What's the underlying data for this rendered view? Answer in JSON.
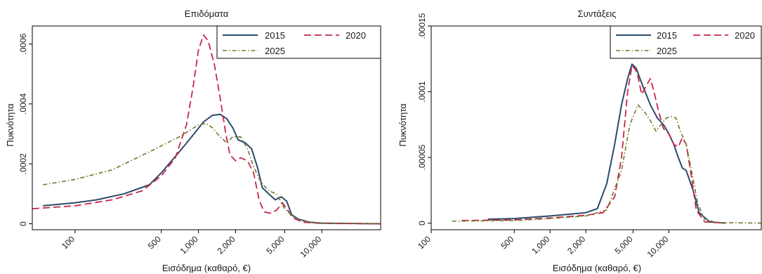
{
  "colors": {
    "c2015": "#2b4a6b",
    "c2020": "#c8254a",
    "c2025": "#6b7a2c",
    "frame": "#000000",
    "gridline": "#000000",
    "background": "#ffffff"
  },
  "chart_data": [
    {
      "type": "line",
      "title": "Επιδόματα",
      "xlabel": "Εισόδημα (καθαρό, €)",
      "ylabel": "Πυκνότητα",
      "x_scale": "log",
      "xlim": [
        45,
        30000
      ],
      "ylim": [
        -2e-05,
        0.00066
      ],
      "x_ticks": [
        100,
        500,
        1000,
        2000,
        5000,
        10000
      ],
      "x_tick_labels": [
        "100",
        "500",
        "1,000",
        "2,000",
        "5,000",
        "10,000"
      ],
      "y_ticks": [
        0,
        0.0002,
        0.0004,
        0.0006
      ],
      "y_tick_labels": [
        "0",
        ".0002",
        ".0004",
        ".0006"
      ],
      "grid": false,
      "legend_position": "top-right",
      "legend": [
        "2015",
        "2020",
        "2025"
      ],
      "series": [
        {
          "name": "2015",
          "color_key": "c2015",
          "dash": "solid",
          "points": [
            [
              55,
              6e-05
            ],
            [
              100,
              7e-05
            ],
            [
              150,
              8e-05
            ],
            [
              250,
              0.0001
            ],
            [
              400,
              0.00013
            ],
            [
              500,
              0.00017
            ],
            [
              700,
              0.00024
            ],
            [
              900,
              0.000295
            ],
            [
              1100,
              0.00034
            ],
            [
              1300,
              0.000362
            ],
            [
              1500,
              0.000365
            ],
            [
              1700,
              0.00035
            ],
            [
              1900,
              0.00032
            ],
            [
              2100,
              0.00028
            ],
            [
              2400,
              0.00027
            ],
            [
              2700,
              0.00025
            ],
            [
              3000,
              0.00019
            ],
            [
              3300,
              0.00012
            ],
            [
              3700,
              0.0001
            ],
            [
              4200,
              8e-05
            ],
            [
              4700,
              9e-05
            ],
            [
              5200,
              7.5e-05
            ],
            [
              5700,
              3e-05
            ],
            [
              6500,
              1.5e-05
            ],
            [
              8000,
              5e-06
            ],
            [
              10000,
              2e-06
            ],
            [
              30000,
              0
            ]
          ]
        },
        {
          "name": "2020",
          "color_key": "c2020",
          "dash": "long-dash",
          "points": [
            [
              45,
              5e-05
            ],
            [
              100,
              6e-05
            ],
            [
              200,
              8e-05
            ],
            [
              350,
              0.00011
            ],
            [
              500,
              0.00016
            ],
            [
              650,
              0.00022
            ],
            [
              800,
              0.00033
            ],
            [
              900,
              0.00045
            ],
            [
              1000,
              0.00058
            ],
            [
              1100,
              0.00063
            ],
            [
              1200,
              0.00061
            ],
            [
              1350,
              0.00053
            ],
            [
              1500,
              0.00042
            ],
            [
              1650,
              0.00031
            ],
            [
              1800,
              0.00023
            ],
            [
              2000,
              0.00021
            ],
            [
              2200,
              0.00022
            ],
            [
              2500,
              0.00021
            ],
            [
              2800,
              0.00017
            ],
            [
              3100,
              8e-05
            ],
            [
              3400,
              4e-05
            ],
            [
              3800,
              3.5e-05
            ],
            [
              4300,
              4.5e-05
            ],
            [
              4800,
              7e-05
            ],
            [
              5200,
              5e-05
            ],
            [
              5800,
              2e-05
            ],
            [
              7000,
              5e-06
            ],
            [
              10000,
              1e-06
            ],
            [
              30000,
              0
            ]
          ]
        },
        {
          "name": "2025",
          "color_key": "c2025",
          "dash": "dash-dot",
          "points": [
            [
              55,
              0.00013
            ],
            [
              100,
              0.000148
            ],
            [
              200,
              0.00018
            ],
            [
              400,
              0.00024
            ],
            [
              700,
              0.00029
            ],
            [
              1000,
              0.00033
            ],
            [
              1150,
              0.000335
            ],
            [
              1300,
              0.00032
            ],
            [
              1500,
              0.00029
            ],
            [
              1700,
              0.00027
            ],
            [
              1900,
              0.00029
            ],
            [
              2200,
              0.00029
            ],
            [
              2500,
              0.00025
            ],
            [
              2800,
              0.00019
            ],
            [
              3200,
              0.00014
            ],
            [
              3700,
              0.00011
            ],
            [
              4300,
              0.0001
            ],
            [
              5000,
              5e-05
            ],
            [
              6000,
              2e-05
            ],
            [
              8000,
              5e-06
            ],
            [
              10000,
              2e-06
            ],
            [
              30000,
              0
            ]
          ]
        }
      ]
    },
    {
      "type": "line",
      "title": "Συντάξεις",
      "xlabel": "Εισόδημα (καθαρό, €)",
      "ylabel": "Πυκνότητα",
      "x_scale": "log",
      "xlim": [
        100,
        60000
      ],
      "ylim": [
        -5e-06,
        0.00015
      ],
      "x_ticks": [
        100,
        500,
        1000,
        2000,
        5000,
        10000
      ],
      "x_tick_labels": [
        "100",
        "500",
        "1,000",
        "2,000",
        "5,000",
        "10,000"
      ],
      "y_ticks": [
        0,
        5e-05,
        0.0001,
        0.00015
      ],
      "y_tick_labels": [
        "0",
        ".00005",
        ".0001",
        ".00015"
      ],
      "grid": false,
      "legend_position": "top-right",
      "legend": [
        "2015",
        "2020",
        "2025"
      ],
      "series": [
        {
          "name": "2015",
          "color_key": "c2015",
          "dash": "solid",
          "points": [
            [
              300,
              3e-06
            ],
            [
              500,
              3.5e-06
            ],
            [
              1000,
              5.5e-06
            ],
            [
              2000,
              8e-06
            ],
            [
              2500,
              1.1e-05
            ],
            [
              3000,
              3e-05
            ],
            [
              3500,
              6e-05
            ],
            [
              4000,
              9e-05
            ],
            [
              4500,
              0.00011
            ],
            [
              4900,
              0.000121
            ],
            [
              5300,
              0.000118
            ],
            [
              6000,
              0.000105
            ],
            [
              7000,
              9e-05
            ],
            [
              8000,
              8e-05
            ],
            [
              9000,
              7.5e-05
            ],
            [
              10000,
              6.8e-05
            ],
            [
              11000,
              6e-05
            ],
            [
              12000,
              5e-05
            ],
            [
              13000,
              4.2e-05
            ],
            [
              14000,
              4e-05
            ],
            [
              16000,
              2.5e-05
            ],
            [
              18000,
              8e-06
            ],
            [
              22000,
              1e-06
            ],
            [
              30000,
              0
            ]
          ]
        },
        {
          "name": "2020",
          "color_key": "c2020",
          "dash": "long-dash",
          "points": [
            [
              180,
              2e-06
            ],
            [
              500,
              2.5e-06
            ],
            [
              1000,
              4e-06
            ],
            [
              2000,
              6e-06
            ],
            [
              2800,
              8e-06
            ],
            [
              3500,
              2e-05
            ],
            [
              4000,
              5e-05
            ],
            [
              4500,
              0.0001
            ],
            [
              4900,
              0.00012
            ],
            [
              5400,
              0.000115
            ],
            [
              5900,
              9.8e-05
            ],
            [
              6500,
              0.000105
            ],
            [
              7000,
              0.00011
            ],
            [
              7500,
              0.0001
            ],
            [
              8200,
              8.5e-05
            ],
            [
              9000,
              7.2e-05
            ],
            [
              10000,
              6.8e-05
            ],
            [
              11000,
              6e-05
            ],
            [
              12000,
              5.8e-05
            ],
            [
              13000,
              6.5e-05
            ],
            [
              14000,
              6e-05
            ],
            [
              15500,
              3.5e-05
            ],
            [
              17000,
              1e-05
            ],
            [
              20000,
              1e-06
            ],
            [
              30000,
              0
            ]
          ]
        },
        {
          "name": "2025",
          "color_key": "c2025",
          "dash": "dash-dot",
          "points": [
            [
              150,
              1.5e-06
            ],
            [
              500,
              2e-06
            ],
            [
              1000,
              3.5e-06
            ],
            [
              2000,
              5.5e-06
            ],
            [
              3000,
              1e-05
            ],
            [
              4000,
              4e-05
            ],
            [
              4700,
              7.5e-05
            ],
            [
              5500,
              9e-05
            ],
            [
              6200,
              8.5e-05
            ],
            [
              7000,
              7.8e-05
            ],
            [
              7800,
              7e-05
            ],
            [
              8600,
              7.5e-05
            ],
            [
              9500,
              8e-05
            ],
            [
              10500,
              8.1e-05
            ],
            [
              11500,
              8e-05
            ],
            [
              12500,
              7e-05
            ],
            [
              14000,
              6e-05
            ],
            [
              15500,
              4e-05
            ],
            [
              17500,
              1.5e-05
            ],
            [
              20000,
              3e-06
            ],
            [
              25000,
              5e-07
            ],
            [
              60000,
              0
            ]
          ]
        }
      ]
    }
  ]
}
